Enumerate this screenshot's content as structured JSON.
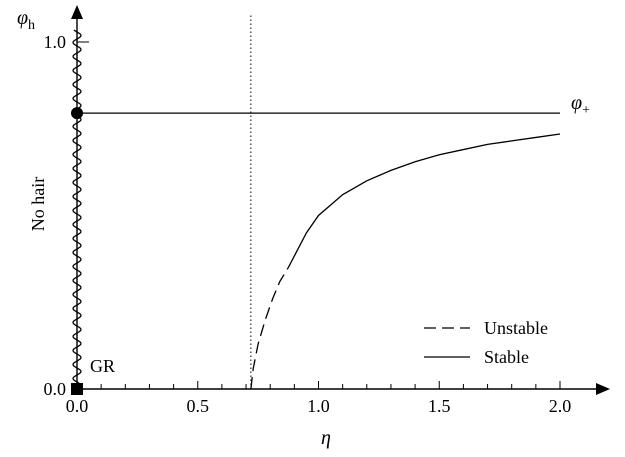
{
  "chart_data": {
    "type": "line",
    "title": "",
    "xlabel": "η",
    "ylabel": "φ",
    "ylabel_sub": "h",
    "xlim": [
      0.0,
      2.0
    ],
    "ylim": [
      0.0,
      1.0
    ],
    "x_ticks": [
      0.0,
      0.5,
      1.0,
      1.5,
      2.0
    ],
    "x_tick_labels": [
      "0.0",
      "0.5",
      "1.0",
      "1.5",
      "2.0"
    ],
    "y_ticks": [
      0.0,
      1.0
    ],
    "y_tick_labels": [
      "0.0",
      "1.0"
    ],
    "grid": false,
    "legend": {
      "placement": "bottom-right",
      "entries": [
        {
          "name": "Unstable",
          "style": "dashed"
        },
        {
          "name": "Stable",
          "style": "solid"
        }
      ]
    },
    "critical_eta": 0.72,
    "series": [
      {
        "name": "Unstable",
        "style": "dashed",
        "x": [
          0.72,
          0.73,
          0.75,
          0.78,
          0.81,
          0.84,
          0.875
        ],
        "y": [
          0.0,
          0.06,
          0.13,
          0.2,
          0.26,
          0.31,
          0.35
        ]
      },
      {
        "name": "Stable",
        "style": "solid",
        "x": [
          0.875,
          0.95,
          1.0,
          1.1,
          1.2,
          1.3,
          1.4,
          1.5,
          1.6,
          1.7,
          1.8,
          1.9,
          2.0
        ],
        "y": [
          0.35,
          0.45,
          0.5,
          0.56,
          0.6,
          0.63,
          0.655,
          0.675,
          0.69,
          0.705,
          0.715,
          0.725,
          0.735
        ]
      }
    ],
    "horizontal_line": {
      "y": 0.795,
      "label": "φ",
      "label_sub": "+"
    },
    "points": [
      {
        "shape": "circle",
        "x": 0.0,
        "y": 0.795
      },
      {
        "shape": "square",
        "x": 0.0,
        "y": 0.0
      }
    ],
    "annotations": {
      "no_hair": "No hair",
      "gr": "GR"
    }
  }
}
